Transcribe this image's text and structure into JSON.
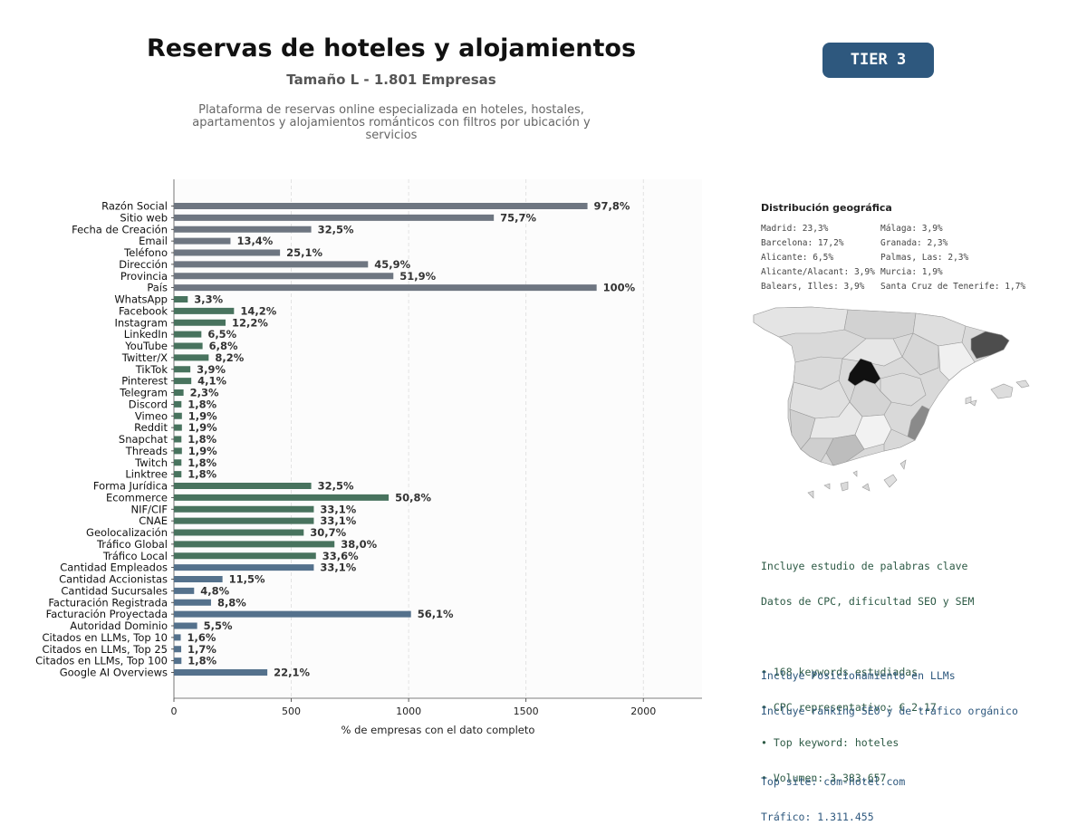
{
  "header": {
    "title": "Reservas de hoteles y alojamientos",
    "subtitle": "Tamaño L - 1.801 Empresas",
    "description": "Plataforma de reservas online especializada en hoteles, hostales, apartamentos y alojamientos románticos con filtros por ubicación y servicios",
    "badge": "TIER 3"
  },
  "colors": {
    "basic": "#6e7681",
    "social": "#48735e",
    "business": "#54718c",
    "badge": "#2e587e"
  },
  "chart_data": {
    "type": "bar",
    "orientation": "horizontal",
    "xlabel": "% de empresas con el dato completo",
    "xlim": [
      0,
      2250
    ],
    "xticks": [
      0,
      500,
      1000,
      1500,
      2000
    ],
    "grid": "vertical dashed",
    "categories": [
      "Razón Social",
      "Sitio web",
      "Fecha de Creación",
      "Email",
      "Teléfono",
      "Dirección",
      "Provincia",
      "País",
      "WhatsApp",
      "Facebook",
      "Instagram",
      "LinkedIn",
      "YouTube",
      "Twitter/X",
      "TikTok",
      "Pinterest",
      "Telegram",
      "Discord",
      "Vimeo",
      "Reddit",
      "Snapchat",
      "Threads",
      "Twitch",
      "Linktree",
      "Forma Jurídica",
      "Ecommerce",
      "NIF/CIF",
      "CNAE",
      "Geolocalización",
      "Tráfico Global",
      "Tráfico Local",
      "Cantidad Empleados",
      "Cantidad Accionistas",
      "Cantidad Sucursales",
      "Facturación Registrada",
      "Facturación Proyectada",
      "Autoridad Dominio",
      "Citados en LLMs, Top 10",
      "Citados en LLMs, Top 25",
      "Citados en LLMs, Top 100",
      "Google AI Overviews"
    ],
    "values": [
      1762,
      1363,
      585,
      241,
      452,
      827,
      935,
      1801,
      59,
      256,
      220,
      117,
      122,
      148,
      70,
      74,
      41,
      32,
      34,
      34,
      32,
      34,
      32,
      32,
      585,
      915,
      596,
      596,
      553,
      684,
      605,
      596,
      207,
      86,
      158,
      1010,
      99,
      29,
      31,
      32,
      398
    ],
    "labels": [
      "97,8%",
      "75,7%",
      "32,5%",
      "13,4%",
      "25,1%",
      "45,9%",
      "51,9%",
      "100%",
      "3,3%",
      "14,2%",
      "12,2%",
      "6,5%",
      "6,8%",
      "8,2%",
      "3,9%",
      "4,1%",
      "2,3%",
      "1,8%",
      "1,9%",
      "1,9%",
      "1,8%",
      "1,9%",
      "1,8%",
      "1,8%",
      "32,5%",
      "50,8%",
      "33,1%",
      "33,1%",
      "30,7%",
      "38,0%",
      "33,6%",
      "33,1%",
      "11,5%",
      "4,8%",
      "8,8%",
      "56,1%",
      "5,5%",
      "1,6%",
      "1,7%",
      "1,8%",
      "22,1%"
    ],
    "groups": [
      "basic",
      "basic",
      "basic",
      "basic",
      "basic",
      "basic",
      "basic",
      "basic",
      "social",
      "social",
      "social",
      "social",
      "social",
      "social",
      "social",
      "social",
      "social",
      "social",
      "social",
      "social",
      "social",
      "social",
      "social",
      "social",
      "social",
      "social",
      "social",
      "social",
      "social",
      "social",
      "social",
      "business",
      "business",
      "business",
      "business",
      "business",
      "business",
      "business",
      "business",
      "business",
      "business"
    ]
  },
  "geo": {
    "title": "Distribución geográfica",
    "col1": [
      "Madrid: 23,3%",
      "Barcelona: 17,2%",
      "Alicante: 6,5%",
      "Alicante/Alacant: 3,9%",
      "Balears, Illes: 3,9%"
    ],
    "col2": [
      "Málaga: 3,9%",
      "Granada: 2,3%",
      "Palmas, Las: 2,3%",
      "Murcia: 1,9%",
      "Santa Cruz de Tenerife: 1,7%"
    ]
  },
  "keywords": {
    "line1": "Incluye estudio de palabras clave",
    "line2": "Datos de CPC, dificultad SEO y SEM",
    "b1": "• 168 keywords estudiadas",
    "b2": "• CPC representativo: € 2.17",
    "b3": "• Top keyword: hoteles",
    "b4": "• Volumen: 3.383.657"
  },
  "llm": {
    "line1": "Incluye Posicionamiento en LLMs",
    "line2": "Incluye ranking SEO y de tráfico orgánico",
    "top_site": "Top site: com-hotel.com",
    "traffic": "Tráfico: 1.311.455"
  }
}
